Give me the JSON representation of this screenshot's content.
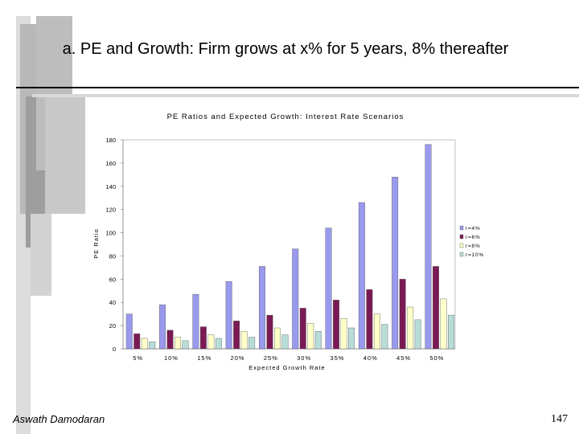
{
  "slide": {
    "title": "a. PE and Growth: Firm grows at x% for 5 years, 8% thereafter",
    "footer_author": "Aswath Damodaran",
    "page_number": "147"
  },
  "chart_data": {
    "type": "bar",
    "title": "PE Ratios and Expected Growth: Interest Rate Scenarios",
    "xlabel": "Expected Growth Rate",
    "ylabel": "PE Ratio",
    "ylim": [
      0,
      180
    ],
    "yticks": [
      0,
      20,
      40,
      60,
      80,
      100,
      120,
      140,
      160,
      180
    ],
    "ytick_labels": [
      "0",
      "20",
      "40",
      "60",
      "80",
      "100",
      "120",
      "140",
      "160",
      "180"
    ],
    "grid": false,
    "legend_position": "right",
    "categories": [
      "5%",
      "10%",
      "15%",
      "20%",
      "25%",
      "30%",
      "35%",
      "40%",
      "45%",
      "50%"
    ],
    "series": [
      {
        "name": "r=4%",
        "color": "#9999ee",
        "values": [
          30,
          38,
          47,
          58,
          71,
          86,
          104,
          126,
          148,
          176
        ]
      },
      {
        "name": "r=6%",
        "color": "#7a1a55",
        "values": [
          13,
          16,
          19,
          24,
          29,
          35,
          42,
          51,
          60,
          71
        ]
      },
      {
        "name": "r=8%",
        "color": "#ffffc8",
        "values": [
          9,
          10,
          12,
          15,
          18,
          22,
          26,
          30,
          36,
          43
        ]
      },
      {
        "name": "r=10%",
        "color": "#b8ddd8",
        "values": [
          6,
          7,
          9,
          10,
          12,
          15,
          18,
          21,
          25,
          29
        ]
      }
    ]
  }
}
